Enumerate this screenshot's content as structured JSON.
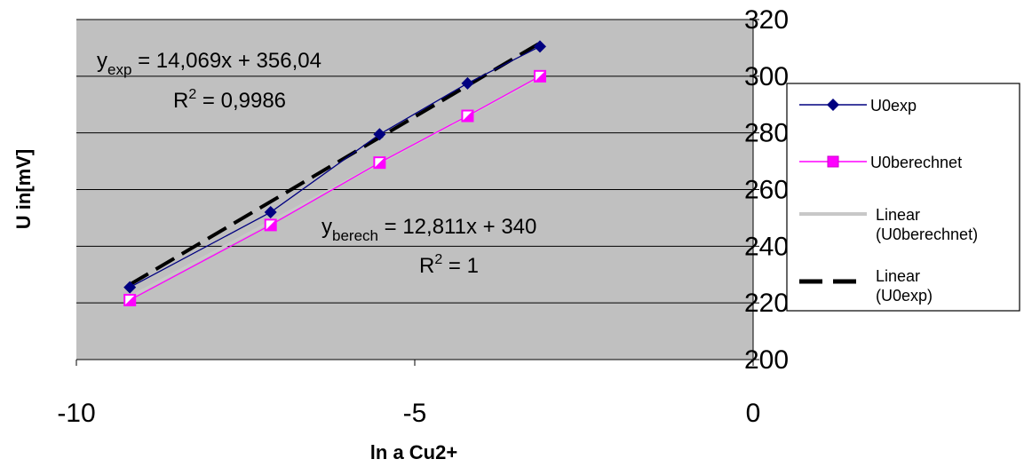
{
  "chart_data": {
    "type": "scatter",
    "xlabel": "ln a Cu2+",
    "ylabel": "U in[mV]",
    "xlim": [
      -10,
      0
    ],
    "ylim": [
      200,
      320
    ],
    "x_ticks": [
      "-10",
      "-5",
      "0"
    ],
    "y_ticks": [
      "200",
      "220",
      "240",
      "260",
      "280",
      "300",
      "320"
    ],
    "grid": "horizontal",
    "plot_background": "#c0c0c0",
    "legend_position": "right",
    "series": [
      {
        "name": "U0exp",
        "kind": "markers-line",
        "marker": "diamond",
        "color": "#000080",
        "x": [
          -9.21,
          -7.13,
          -5.52,
          -4.22,
          -3.15
        ],
        "y": [
          225.5,
          252,
          279.5,
          297.5,
          310.5
        ]
      },
      {
        "name": "U0berechnet",
        "kind": "markers-line",
        "marker": "square",
        "color": "#ff00ff",
        "x": [
          -9.21,
          -7.13,
          -5.52,
          -4.22,
          -3.15
        ],
        "y": [
          221,
          247.5,
          269.5,
          286,
          300
        ]
      },
      {
        "name": "Linear\n(U0berechnet)",
        "kind": "trendline",
        "style": "solid",
        "color": "#c8c8c8",
        "slope": 12.811,
        "intercept": 340,
        "x_range": [
          -9.21,
          -3.15
        ]
      },
      {
        "name": "Linear\n(U0exp)",
        "kind": "trendline",
        "style": "dashed",
        "color": "#000000",
        "slope": 14.069,
        "intercept": 356.04,
        "x_range": [
          -9.21,
          -3.15
        ]
      }
    ],
    "annotations": {
      "exp_eq": {
        "base": "y",
        "sub": "exp",
        "text": " = 14,069x + 356,04"
      },
      "exp_r2": {
        "base": "R",
        "sup": "2",
        "text": " = 0,9986"
      },
      "ber_eq": {
        "base": "y",
        "sub": "berech",
        "text": " = 12,811x + 340"
      },
      "ber_r2": {
        "base": "R",
        "sup": "2",
        "text": " = 1"
      }
    }
  }
}
